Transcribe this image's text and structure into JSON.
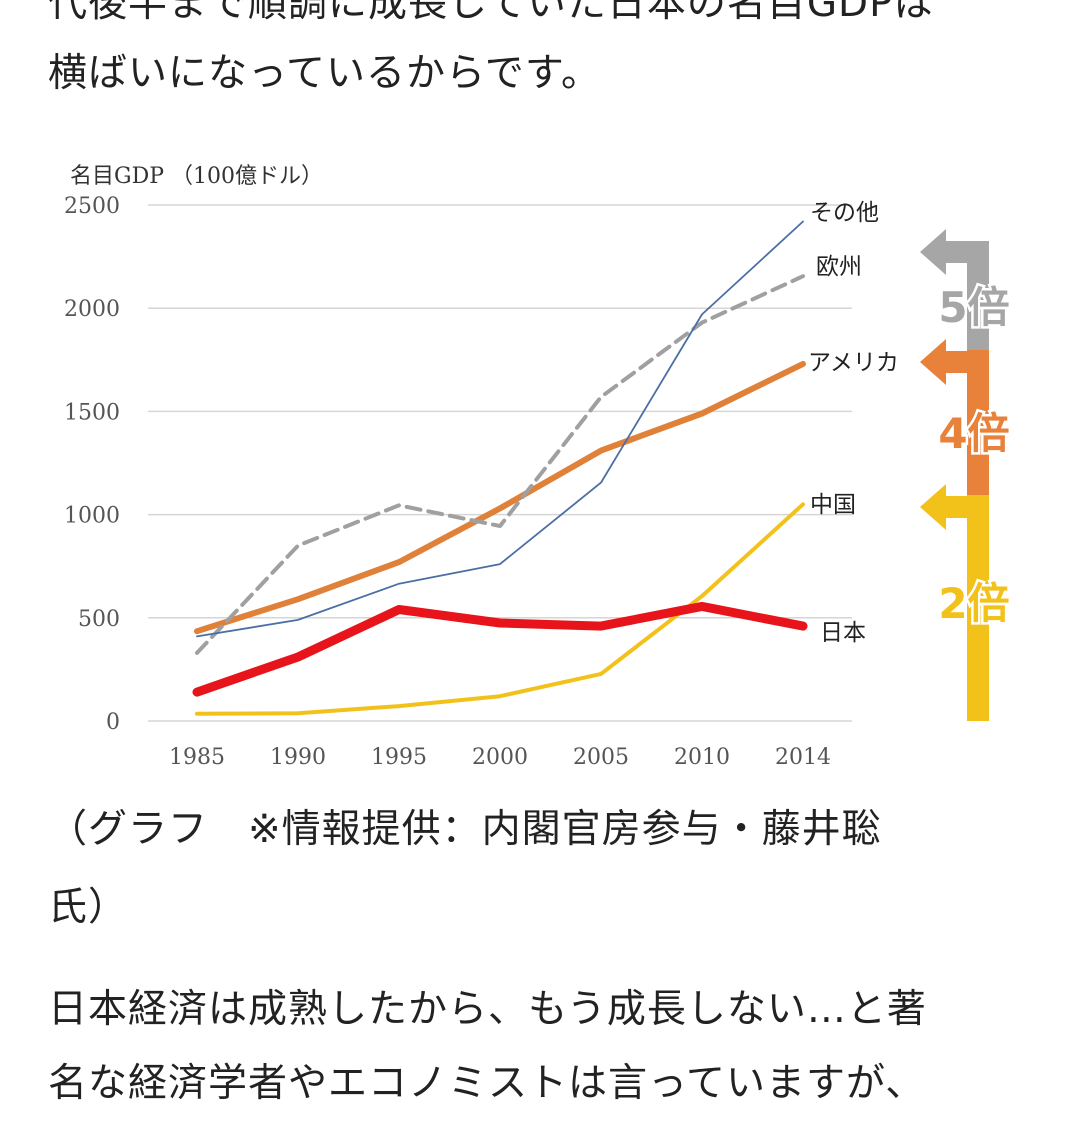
{
  "article": {
    "top_line_1": "代後半まで順調に成長していた日本の名目GDPは",
    "top_line_2": "横ばいになっているからです。",
    "caption_line_1": "（グラフ　※情報提供：内閣官房参与・藤井聡",
    "caption_line_2": "氏）",
    "body_line_1": "日本経済は成熟したから、もう成長しない…と著",
    "body_line_2": "名な経済学者やエコノミストは言っていますが、"
  },
  "chart_data": {
    "type": "line",
    "title": "",
    "ylabel": "名目GDP （100億ドル）",
    "xlabel": "",
    "categories": [
      "1985",
      "1990",
      "1995",
      "2000",
      "2005",
      "2010",
      "2014"
    ],
    "ylim": [
      0,
      2500
    ],
    "yticks": [
      "0",
      "500",
      "1000",
      "1500",
      "2000",
      "2500"
    ],
    "grid": true,
    "series": [
      {
        "name": "その他",
        "values": [
          410,
          490,
          665,
          760,
          1155,
          1970,
          2420
        ],
        "color": "#4a6fa5",
        "style": "thin"
      },
      {
        "name": "欧州",
        "values": [
          330,
          850,
          1045,
          945,
          1570,
          1930,
          2155
        ],
        "color": "#a0a0a0",
        "style": "dashed"
      },
      {
        "name": "アメリカ",
        "values": [
          435,
          590,
          770,
          1030,
          1310,
          1490,
          1730
        ],
        "color": "#e0813a",
        "style": "thick"
      },
      {
        "name": "中国",
        "values": [
          35,
          38,
          72,
          120,
          228,
          605,
          1050
        ],
        "color": "#f2c21b",
        "style": "medium"
      },
      {
        "name": "日本",
        "values": [
          140,
          310,
          540,
          475,
          460,
          555,
          460
        ],
        "color": "#e8141b",
        "style": "bold"
      }
    ],
    "growth_markers": [
      {
        "label": "5倍",
        "color": "#a6a6a6"
      },
      {
        "label": "4倍",
        "color": "#e8813a"
      },
      {
        "label": "2倍",
        "color": "#f2c21b"
      }
    ]
  }
}
